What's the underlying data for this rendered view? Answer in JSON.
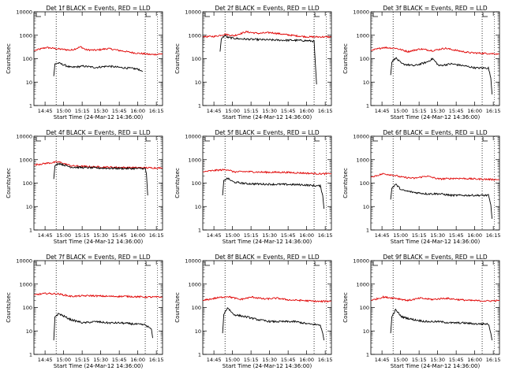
{
  "chart_data": {
    "type": "line",
    "grid_title": "",
    "xlabel": "Start Time (24-Mar-12 14:36:00)",
    "ylabel": "Counts/sec",
    "yscale": "log",
    "ylim": [
      1,
      10000
    ],
    "ytick_labels": [
      "1",
      "10",
      "100",
      "1000",
      "10000"
    ],
    "xtick_labels": [
      "14:45",
      "15:00",
      "15:15",
      "15:30",
      "15:45",
      "16:00",
      "16:15"
    ],
    "xtick_minutes": [
      9,
      24,
      39,
      54,
      69,
      84,
      99
    ],
    "xlim_minutes": [
      0,
      104
    ],
    "vlines_minutes": [
      18,
      90
    ],
    "series_colors": {
      "events": "#000000",
      "lld": "#e00000"
    },
    "legend": "BLACK = Events, RED = LLD",
    "panels": [
      {
        "title": "Det 1f BLACK = Events, RED = LLD",
        "events": {
          "start": 16,
          "end": 88,
          "points": [
            [
              16,
              18
            ],
            [
              17,
              60
            ],
            [
              20,
              65
            ],
            [
              30,
              42
            ],
            [
              40,
              48
            ],
            [
              50,
              42
            ],
            [
              60,
              48
            ],
            [
              70,
              42
            ],
            [
              80,
              38
            ],
            [
              85,
              35
            ],
            [
              88,
              28
            ]
          ]
        },
        "lld": {
          "points": [
            [
              0,
              220
            ],
            [
              10,
              300
            ],
            [
              20,
              260
            ],
            [
              30,
              230
            ],
            [
              38,
              320
            ],
            [
              42,
              240
            ],
            [
              50,
              230
            ],
            [
              60,
              270
            ],
            [
              70,
              220
            ],
            [
              80,
              180
            ],
            [
              95,
              150
            ],
            [
              104,
              160
            ]
          ]
        }
      },
      {
        "title": "Det 2f BLACK = Events, RED = LLD",
        "events": {
          "start": 14,
          "end": 92,
          "points": [
            [
              14,
              200
            ],
            [
              15,
              700
            ],
            [
              18,
              1000
            ],
            [
              20,
              800
            ],
            [
              30,
              700
            ],
            [
              45,
              650
            ],
            [
              60,
              620
            ],
            [
              80,
              600
            ],
            [
              90,
              560
            ],
            [
              92,
              8
            ]
          ]
        },
        "lld": {
          "points": [
            [
              0,
              850
            ],
            [
              10,
              900
            ],
            [
              18,
              1100
            ],
            [
              25,
              950
            ],
            [
              35,
              1400
            ],
            [
              45,
              1200
            ],
            [
              55,
              1300
            ],
            [
              65,
              1100
            ],
            [
              75,
              950
            ],
            [
              85,
              850
            ],
            [
              104,
              850
            ]
          ]
        }
      },
      {
        "title": "Det 3f BLACK = Events, RED = LLD",
        "events": {
          "start": 16,
          "end": 98,
          "points": [
            [
              16,
              20
            ],
            [
              17,
              70
            ],
            [
              20,
              110
            ],
            [
              25,
              60
            ],
            [
              35,
              50
            ],
            [
              45,
              70
            ],
            [
              50,
              100
            ],
            [
              55,
              50
            ],
            [
              65,
              60
            ],
            [
              75,
              50
            ],
            [
              85,
              40
            ],
            [
              95,
              40
            ],
            [
              97,
              15
            ],
            [
              98,
              3
            ]
          ]
        },
        "lld": {
          "points": [
            [
              0,
              220
            ],
            [
              10,
              300
            ],
            [
              20,
              280
            ],
            [
              30,
              200
            ],
            [
              40,
              260
            ],
            [
              50,
              220
            ],
            [
              60,
              280
            ],
            [
              70,
              220
            ],
            [
              80,
              180
            ],
            [
              90,
              170
            ],
            [
              104,
              160
            ]
          ]
        }
      },
      {
        "title": "Det 4f BLACK = Events, RED = LLD",
        "events": {
          "start": 16,
          "end": 92,
          "points": [
            [
              16,
              150
            ],
            [
              17,
              550
            ],
            [
              20,
              700
            ],
            [
              30,
              480
            ],
            [
              45,
              450
            ],
            [
              60,
              430
            ],
            [
              75,
              420
            ],
            [
              90,
              420
            ],
            [
              91,
              250
            ],
            [
              92,
              30
            ]
          ]
        },
        "lld": {
          "points": [
            [
              0,
              600
            ],
            [
              10,
              700
            ],
            [
              20,
              800
            ],
            [
              30,
              550
            ],
            [
              45,
              500
            ],
            [
              60,
              480
            ],
            [
              75,
              460
            ],
            [
              90,
              450
            ],
            [
              104,
              440
            ]
          ]
        }
      },
      {
        "title": "Det 5f BLACK = Events, RED = LLD",
        "events": {
          "start": 16,
          "end": 98,
          "points": [
            [
              16,
              30
            ],
            [
              17,
              130
            ],
            [
              20,
              160
            ],
            [
              25,
              110
            ],
            [
              35,
              95
            ],
            [
              50,
              90
            ],
            [
              65,
              88
            ],
            [
              80,
              85
            ],
            [
              95,
              75
            ],
            [
              97,
              30
            ],
            [
              98,
              8
            ]
          ]
        },
        "lld": {
          "points": [
            [
              0,
              300
            ],
            [
              10,
              350
            ],
            [
              20,
              380
            ],
            [
              25,
              300
            ],
            [
              35,
              310
            ],
            [
              50,
              290
            ],
            [
              65,
              290
            ],
            [
              80,
              270
            ],
            [
              95,
              250
            ],
            [
              104,
              250
            ]
          ]
        }
      },
      {
        "title": "Det 6f BLACK = Events, RED = LLD",
        "events": {
          "start": 16,
          "end": 98,
          "points": [
            [
              16,
              20
            ],
            [
              17,
              60
            ],
            [
              20,
              90
            ],
            [
              25,
              50
            ],
            [
              35,
              40
            ],
            [
              45,
              35
            ],
            [
              55,
              35
            ],
            [
              65,
              30
            ],
            [
              80,
              30
            ],
            [
              95,
              30
            ],
            [
              97,
              12
            ],
            [
              98,
              3
            ]
          ]
        },
        "lld": {
          "points": [
            [
              0,
              180
            ],
            [
              10,
              250
            ],
            [
              18,
              220
            ],
            [
              25,
              180
            ],
            [
              35,
              160
            ],
            [
              45,
              200
            ],
            [
              55,
              150
            ],
            [
              70,
              160
            ],
            [
              85,
              150
            ],
            [
              104,
              140
            ]
          ]
        }
      },
      {
        "title": "Det 7f BLACK = Events, RED = LLD",
        "events": {
          "start": 16,
          "end": 96,
          "points": [
            [
              16,
              4
            ],
            [
              17,
              40
            ],
            [
              20,
              55
            ],
            [
              30,
              30
            ],
            [
              40,
              22
            ],
            [
              50,
              25
            ],
            [
              60,
              22
            ],
            [
              70,
              22
            ],
            [
              80,
              20
            ],
            [
              90,
              18
            ],
            [
              95,
              12
            ],
            [
              96,
              5
            ]
          ]
        },
        "lld": {
          "points": [
            [
              0,
              350
            ],
            [
              10,
              400
            ],
            [
              20,
              380
            ],
            [
              30,
              300
            ],
            [
              45,
              320
            ],
            [
              60,
              300
            ],
            [
              75,
              300
            ],
            [
              90,
              280
            ],
            [
              104,
              280
            ]
          ]
        }
      },
      {
        "title": "Det 8f BLACK = Events, RED = LLD",
        "events": {
          "start": 16,
          "end": 98,
          "points": [
            [
              16,
              8
            ],
            [
              17,
              50
            ],
            [
              20,
              100
            ],
            [
              25,
              50
            ],
            [
              35,
              40
            ],
            [
              45,
              30
            ],
            [
              55,
              25
            ],
            [
              65,
              25
            ],
            [
              75,
              25
            ],
            [
              85,
              20
            ],
            [
              95,
              18
            ],
            [
              97,
              8
            ],
            [
              98,
              4
            ]
          ]
        },
        "lld": {
          "points": [
            [
              0,
              200
            ],
            [
              10,
              250
            ],
            [
              20,
              300
            ],
            [
              30,
              220
            ],
            [
              40,
              280
            ],
            [
              50,
              230
            ],
            [
              60,
              250
            ],
            [
              70,
              210
            ],
            [
              80,
              200
            ],
            [
              95,
              180
            ],
            [
              104,
              190
            ]
          ]
        }
      },
      {
        "title": "Det 9f BLACK = Events, RED = LLD",
        "events": {
          "start": 16,
          "end": 98,
          "points": [
            [
              16,
              8
            ],
            [
              17,
              40
            ],
            [
              20,
              80
            ],
            [
              25,
              40
            ],
            [
              35,
              30
            ],
            [
              45,
              25
            ],
            [
              55,
              25
            ],
            [
              65,
              22
            ],
            [
              75,
              22
            ],
            [
              85,
              20
            ],
            [
              95,
              20
            ],
            [
              97,
              8
            ],
            [
              98,
              4
            ]
          ]
        },
        "lld": {
          "points": [
            [
              0,
              200
            ],
            [
              10,
              280
            ],
            [
              20,
              250
            ],
            [
              30,
              200
            ],
            [
              40,
              250
            ],
            [
              50,
              220
            ],
            [
              60,
              250
            ],
            [
              70,
              220
            ],
            [
              80,
              200
            ],
            [
              95,
              190
            ],
            [
              104,
              200
            ]
          ]
        }
      }
    ]
  }
}
